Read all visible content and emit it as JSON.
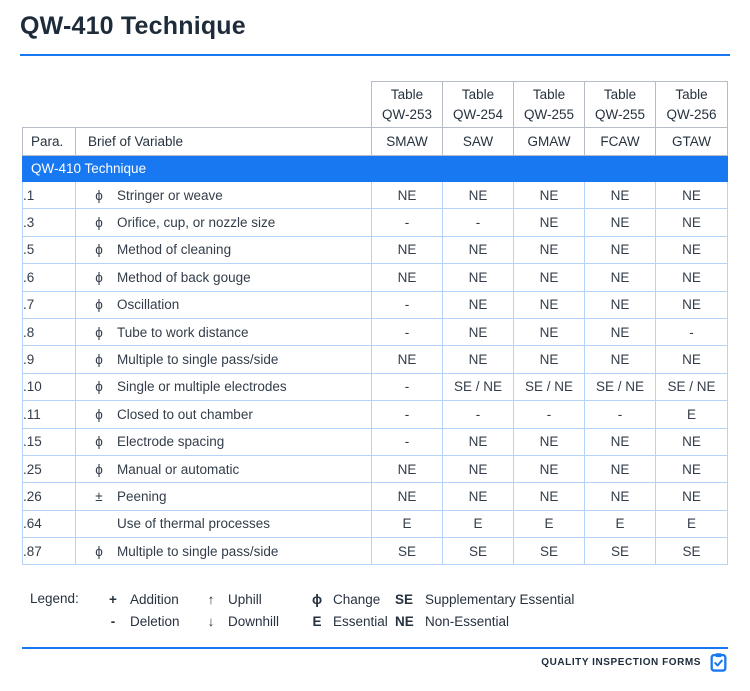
{
  "page": {
    "title": "QW-410 Technique"
  },
  "table": {
    "para_header": "Para.",
    "brief_header": "Brief of Variable",
    "section_header": "QW-410 Technique",
    "process_columns": [
      {
        "table_line1": "Table",
        "table_line2": "QW-253",
        "process": "SMAW"
      },
      {
        "table_line1": "Table",
        "table_line2": "QW-254",
        "process": "SAW"
      },
      {
        "table_line1": "Table",
        "table_line2": "QW-255",
        "process": "GMAW"
      },
      {
        "table_line1": "Table",
        "table_line2": "QW-255",
        "process": "FCAW"
      },
      {
        "table_line1": "Table",
        "table_line2": "QW-256",
        "process": "GTAW"
      }
    ],
    "rows": [
      {
        "para": ".1",
        "symbol": "ϕ",
        "brief": "Stringer or weave",
        "values": [
          "NE",
          "NE",
          "NE",
          "NE",
          "NE"
        ]
      },
      {
        "para": ".3",
        "symbol": "ϕ",
        "brief": "Orifice, cup, or nozzle size",
        "values": [
          "-",
          "-",
          "NE",
          "NE",
          "NE"
        ]
      },
      {
        "para": ".5",
        "symbol": "ϕ",
        "brief": "Method of cleaning",
        "values": [
          "NE",
          "NE",
          "NE",
          "NE",
          "NE"
        ]
      },
      {
        "para": ".6",
        "symbol": "ϕ",
        "brief": "Method of back gouge",
        "values": [
          "NE",
          "NE",
          "NE",
          "NE",
          "NE"
        ]
      },
      {
        "para": ".7",
        "symbol": "ϕ",
        "brief": "Oscillation",
        "values": [
          "-",
          "NE",
          "NE",
          "NE",
          "NE"
        ]
      },
      {
        "para": ".8",
        "symbol": "ϕ",
        "brief": "Tube to work distance",
        "values": [
          "-",
          "NE",
          "NE",
          "NE",
          "-"
        ]
      },
      {
        "para": ".9",
        "symbol": "ϕ",
        "brief": "Multiple to single pass/side",
        "values": [
          "NE",
          "NE",
          "NE",
          "NE",
          "NE"
        ]
      },
      {
        "para": ".10",
        "symbol": "ϕ",
        "brief": "Single or multiple electrodes",
        "values": [
          "-",
          "SE / NE",
          "SE / NE",
          "SE / NE",
          "SE / NE"
        ]
      },
      {
        "para": ".11",
        "symbol": "ϕ",
        "brief": "Closed to out chamber",
        "values": [
          "-",
          "-",
          "-",
          "-",
          "E"
        ]
      },
      {
        "para": ".15",
        "symbol": "ϕ",
        "brief": "Electrode spacing",
        "values": [
          "-",
          "NE",
          "NE",
          "NE",
          "NE"
        ]
      },
      {
        "para": ".25",
        "symbol": "ϕ",
        "brief": "Manual or automatic",
        "values": [
          "NE",
          "NE",
          "NE",
          "NE",
          "NE"
        ]
      },
      {
        "para": ".26",
        "symbol": "±",
        "brief": "Peening",
        "values": [
          "NE",
          "NE",
          "NE",
          "NE",
          "NE"
        ]
      },
      {
        "para": ".64",
        "symbol": "",
        "brief": "Use of thermal processes",
        "values": [
          "E",
          "E",
          "E",
          "E",
          "E"
        ]
      },
      {
        "para": ".87",
        "symbol": "ϕ",
        "brief": "Multiple to single pass/side",
        "values": [
          "SE",
          "SE",
          "SE",
          "SE",
          "SE"
        ]
      }
    ]
  },
  "legend": {
    "label": "Legend:",
    "columns": [
      [
        {
          "symbol": "+",
          "text": "Addition"
        },
        {
          "symbol": "-",
          "text": "Deletion"
        }
      ],
      [
        {
          "symbol": "↑",
          "text": "Uphill"
        },
        {
          "symbol": "↓",
          "text": "Downhill"
        }
      ],
      [
        {
          "symbol": "ϕ",
          "text": "Change"
        },
        {
          "symbol": "E",
          "text": "Essential"
        }
      ],
      [
        {
          "symbol": "SE",
          "text": "Supplementary Essential"
        },
        {
          "symbol": "NE",
          "text": "Non-Essential"
        }
      ]
    ]
  },
  "footer": {
    "brand": "QUALITY INSPECTION FORMS",
    "icon": "clipboard-check-icon"
  },
  "colors": {
    "accent_blue": "#1778f2",
    "header_border": "#b6bdc7",
    "row_border": "#b5d3f8",
    "text_dark": "#1d2b3a"
  }
}
